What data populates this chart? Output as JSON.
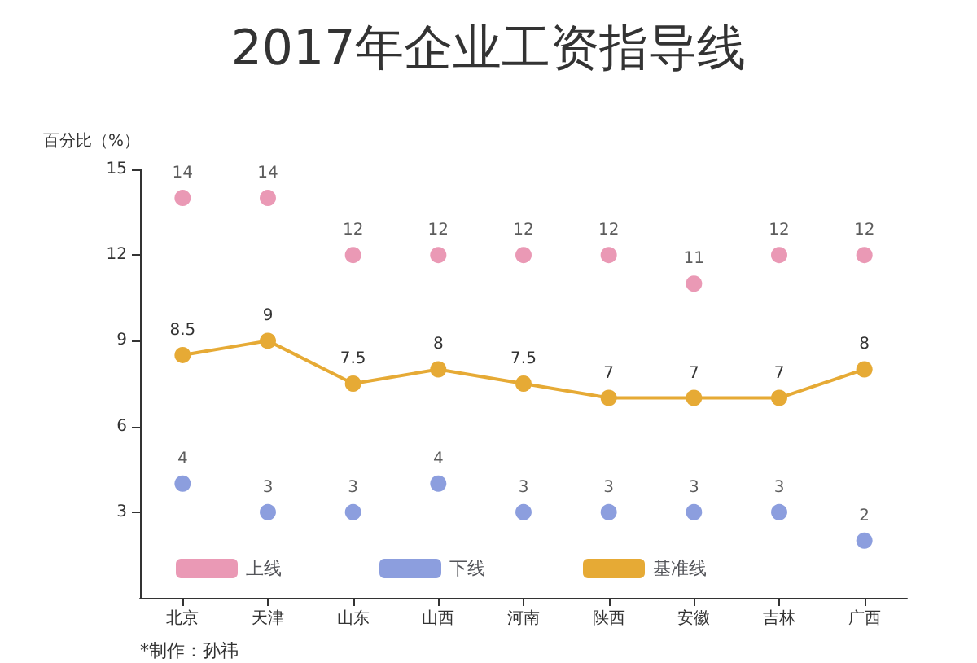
{
  "chart_data": {
    "type": "scatter",
    "title": "2017年企业工资指导线",
    "ylabel": "百分比（%）",
    "categories": [
      "北京",
      "天津",
      "山东",
      "山西",
      "河南",
      "陕西",
      "安徽",
      "吉林",
      "广西"
    ],
    "series": [
      {
        "name": "上线",
        "color": "#e57fa3",
        "values": [
          14,
          14,
          12,
          12,
          12,
          12,
          11,
          12,
          12
        ]
      },
      {
        "name": "下线",
        "color": "#6f86d6",
        "values": [
          4,
          3,
          3,
          4,
          3,
          3,
          3,
          3,
          2
        ]
      },
      {
        "name": "基准线",
        "type": "line",
        "color": "#e6aa35",
        "values": [
          8.5,
          9,
          7.5,
          8,
          7.5,
          7,
          7,
          7,
          8
        ]
      }
    ],
    "ylim": [
      0,
      15
    ],
    "yticks": [
      3,
      6,
      9,
      12,
      15
    ],
    "grid": false,
    "legend": "bottom left",
    "marker": "circle",
    "data_labels": true,
    "annotations": [
      "*制作：孙祎"
    ]
  }
}
